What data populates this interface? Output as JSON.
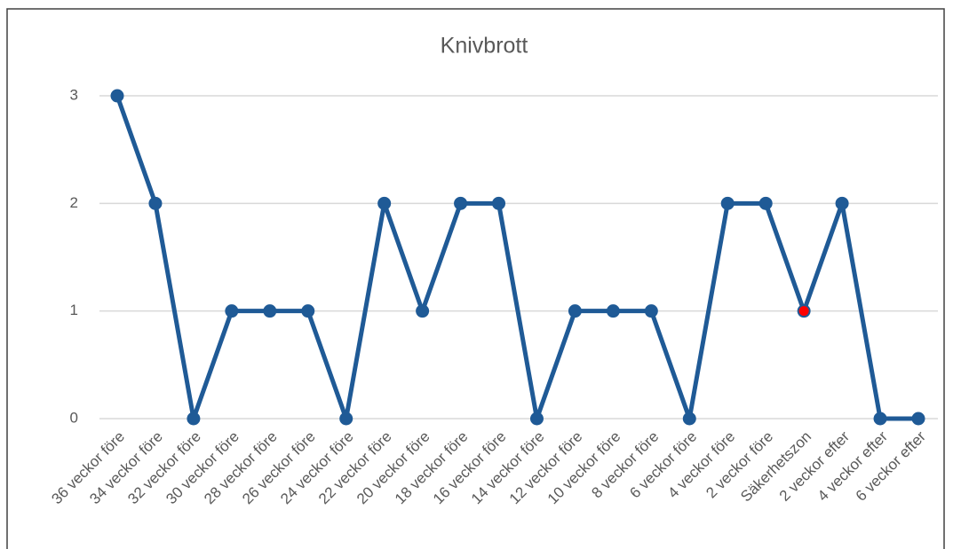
{
  "chart_data": {
    "type": "line",
    "title": "Knivbrott",
    "categories": [
      "36 veckor före",
      "34 veckor före",
      "32 veckor före",
      "30 veckor före",
      "28 veckor före",
      "26 veckor före",
      "24 veckor före",
      "22 veckor före",
      "20 veckor före",
      "18 veckor före",
      "16 veckor före",
      "14 veckor före",
      "12 veckor före",
      "10 veckor före",
      "8 veckor före",
      "6 veckor före",
      "4 veckor före",
      "2 veckor före",
      "Säkerhetszon",
      "2 veckor efter",
      "4 veckor efter",
      "6 veckor efter"
    ],
    "values": [
      3,
      2,
      0,
      1,
      1,
      1,
      0,
      2,
      1,
      2,
      2,
      0,
      1,
      1,
      1,
      0,
      2,
      2,
      1,
      2,
      0,
      0
    ],
    "color": "#1f5a96",
    "marker_colors": [
      "#1f5a96",
      "#1f5a96",
      "#1f5a96",
      "#1f5a96",
      "#1f5a96",
      "#1f5a96",
      "#1f5a96",
      "#1f5a96",
      "#1f5a96",
      "#1f5a96",
      "#1f5a96",
      "#1f5a96",
      "#1f5a96",
      "#1f5a96",
      "#1f5a96",
      "#1f5a96",
      "#1f5a96",
      "#1f5a96",
      "#ff0000",
      "#1f5a96",
      "#1f5a96",
      "#1f5a96"
    ],
    "ylim": [
      0,
      3
    ],
    "yticks": [
      0,
      1,
      2,
      3
    ],
    "grid": true
  }
}
